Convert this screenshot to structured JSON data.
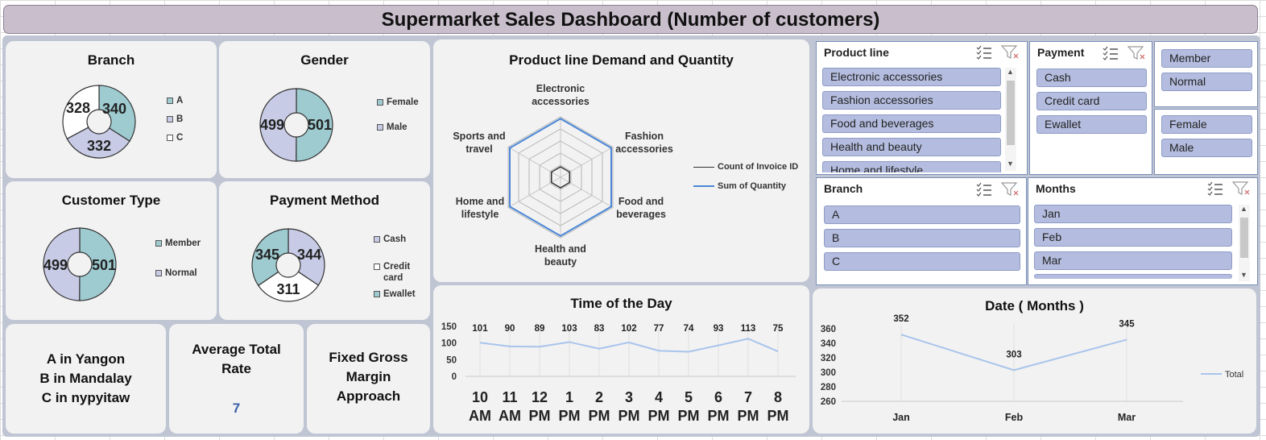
{
  "header": {
    "title": "Supermarket Sales Dashboard (Number of customers)"
  },
  "branch": {
    "title": "Branch",
    "labels": [
      "340",
      "332",
      "328"
    ],
    "legend": [
      "A",
      "B",
      "C"
    ],
    "chart_data": {
      "type": "pie",
      "title": "Branch",
      "categories": [
        "A",
        "B",
        "C"
      ],
      "values": [
        340,
        332,
        328
      ]
    }
  },
  "gender": {
    "title": "Gender",
    "labels": [
      "501",
      "499"
    ],
    "legend": [
      "Female",
      "Male"
    ],
    "chart_data": {
      "type": "pie",
      "title": "Gender",
      "categories": [
        "Female",
        "Male"
      ],
      "values": [
        501,
        499
      ]
    }
  },
  "customer_type": {
    "title": "Customer Type",
    "labels": [
      "501",
      "499"
    ],
    "legend": [
      "Member",
      "Normal"
    ],
    "chart_data": {
      "type": "pie",
      "title": "Customer Type",
      "categories": [
        "Member",
        "Normal"
      ],
      "values": [
        501,
        499
      ]
    }
  },
  "payment_method": {
    "title": "Payment Method",
    "labels": [
      "344",
      "311",
      "345"
    ],
    "legend": [
      "Cash",
      "Credit card",
      "Ewallet"
    ],
    "chart_data": {
      "type": "pie",
      "title": "Payment Method",
      "categories": [
        "Cash",
        "Credit card",
        "Ewallet"
      ],
      "values": [
        344,
        311,
        345
      ]
    }
  },
  "radar": {
    "title": "Product line Demand and Quantity",
    "axes": [
      "Electronic accessories",
      "Fashion accessories",
      "Food and beverages",
      "Health and beauty",
      "Home and lifestyle",
      "Sports and travel"
    ],
    "legend": [
      "Count of Invoice ID",
      "Sum of Quantity"
    ]
  },
  "info": {
    "cities": [
      "A in Yangon",
      "B in Mandalay",
      "C in nypyitaw"
    ],
    "avg_label": "Average Total Rate",
    "avg_value": "7",
    "margin_label": "Fixed Gross Margin Approach"
  },
  "time_chart": {
    "title": "Time of the Day",
    "y_ticks": [
      "150",
      "100",
      "50",
      "0"
    ],
    "categories": [
      "10 AM",
      "11 AM",
      "12 PM",
      "1 PM",
      "2 PM",
      "3 PM",
      "4 PM",
      "5 PM",
      "6 PM",
      "7 PM",
      "8 PM"
    ],
    "values": [
      101,
      90,
      89,
      103,
      83,
      102,
      77,
      74,
      93,
      113,
      75
    ],
    "chart_data": {
      "type": "line",
      "title": "Time of the Day",
      "categories": [
        "10 AM",
        "11 AM",
        "12 PM",
        "1 PM",
        "2 PM",
        "3 PM",
        "4 PM",
        "5 PM",
        "6 PM",
        "7 PM",
        "8 PM"
      ],
      "values": [
        101,
        90,
        89,
        103,
        83,
        102,
        77,
        74,
        93,
        113,
        75
      ],
      "ylim": [
        0,
        150
      ]
    }
  },
  "month_chart": {
    "title": "Date ( Months )",
    "y_ticks": [
      "360",
      "340",
      "320",
      "300",
      "280",
      "260"
    ],
    "categories": [
      "Jan",
      "Feb",
      "Mar"
    ],
    "values": [
      352,
      303,
      345
    ],
    "legend": "Total",
    "chart_data": {
      "type": "line",
      "title": "Date ( Months )",
      "categories": [
        "Jan",
        "Feb",
        "Mar"
      ],
      "series": [
        {
          "name": "Total",
          "values": [
            352,
            303,
            345
          ]
        }
      ],
      "ylim": [
        260,
        360
      ]
    }
  },
  "slicers": {
    "product_line": {
      "title": "Product line",
      "items": [
        "Electronic accessories",
        "Fashion accessories",
        "Food and beverages",
        "Health and beauty",
        "Home and lifestyle"
      ]
    },
    "payment": {
      "title": "Payment",
      "items": [
        "Cash",
        "Credit card",
        "Ewallet"
      ]
    },
    "customer_type": {
      "items": [
        "Member",
        "Normal"
      ]
    },
    "gender": {
      "items": [
        "Female",
        "Male"
      ]
    },
    "branch": {
      "title": "Branch",
      "items": [
        "A",
        "B",
        "C"
      ]
    },
    "months": {
      "title": "Months",
      "items": [
        "Jan",
        "Feb",
        "Mar"
      ]
    }
  },
  "colors": {
    "teal": "#9ecbd0",
    "lavender": "#c8cbe6",
    "white": "#ffffff",
    "line": "#a9c4ec",
    "radar_blue": "#4a86d6",
    "slicer_item": "#b4bddf"
  }
}
